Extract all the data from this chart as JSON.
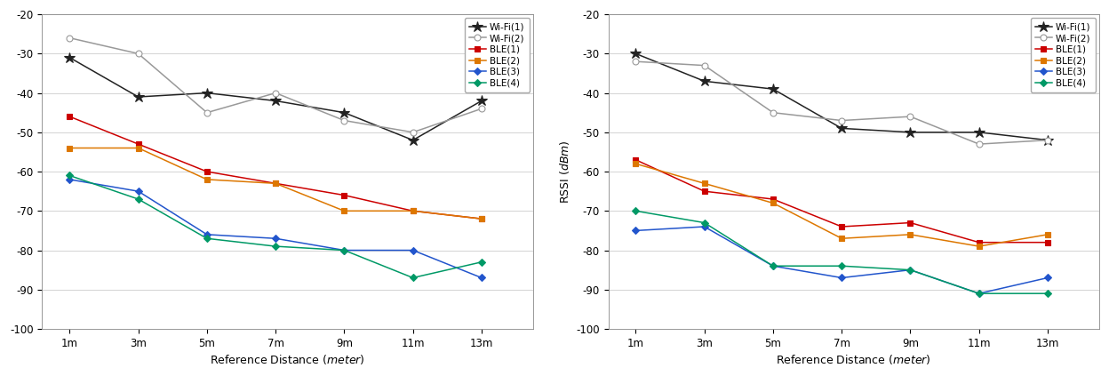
{
  "x_labels": [
    "1m",
    "3m",
    "5m",
    "7m",
    "9m",
    "11m",
    "13m"
  ],
  "x_vals": [
    1,
    3,
    5,
    7,
    9,
    11,
    13
  ],
  "left": {
    "wifi1": [
      -31,
      -41,
      -40,
      -42,
      -45,
      -52,
      -42
    ],
    "wifi2": [
      -26,
      -30,
      -45,
      -40,
      -47,
      -50,
      -44
    ],
    "ble1": [
      -46,
      -53,
      -60,
      -63,
      -66,
      -70,
      -72
    ],
    "ble2": [
      -54,
      -54,
      -62,
      -63,
      -70,
      -70,
      -72
    ],
    "ble3": [
      -62,
      -65,
      -76,
      -77,
      -80,
      -80,
      -87
    ],
    "ble4": [
      -61,
      -67,
      -77,
      -79,
      -80,
      -87,
      -83
    ]
  },
  "right": {
    "wifi1": [
      -30,
      -37,
      -39,
      -49,
      -50,
      -50,
      -52
    ],
    "wifi2": [
      -32,
      -33,
      -45,
      -47,
      -46,
      -53,
      -52
    ],
    "ble1": [
      -57,
      -65,
      -67,
      -74,
      -73,
      -78,
      -78
    ],
    "ble2": [
      -58,
      -63,
      -68,
      -77,
      -76,
      -79,
      -76
    ],
    "ble3": [
      -75,
      -74,
      -84,
      -87,
      -85,
      -91,
      -87
    ],
    "ble4": [
      -70,
      -73,
      -84,
      -84,
      -85,
      -91,
      -91
    ]
  },
  "ylim": [
    -100,
    -20
  ],
  "yticks": [
    -100,
    -90,
    -80,
    -70,
    -60,
    -50,
    -40,
    -30,
    -20
  ],
  "ylabel": "RSSI  (dBm)",
  "xlabel_text": "Reference Distance",
  "xlabel_italic": "(meter)",
  "legend_labels": [
    "Wi-Fi(1)",
    "Wi-Fi(2)",
    "BLE(1)",
    "BLE(2)",
    "BLE(3)",
    "BLE(4)"
  ],
  "colors": {
    "wifi1": "#222222",
    "wifi2": "#999999",
    "ble1": "#cc0000",
    "ble2": "#dd7700",
    "ble3": "#2255cc",
    "ble4": "#009966"
  },
  "bg_color": "#f8f8f8",
  "grid_color": "#cccccc"
}
